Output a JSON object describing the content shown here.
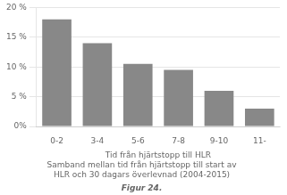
{
  "chart_data": {
    "type": "bar",
    "title": "Figur 24.",
    "subtitle": "Samband mellan tid från hjärtstopp till start av\nHLR och 30 dagars överlevnad (2004-2015)",
    "xlabel": "Tid från hjärtstopp till HLR",
    "categories": [
      "0-2",
      "3-4",
      "5-6",
      "7-8",
      "9-10",
      "11-"
    ],
    "values": [
      18,
      14,
      10.5,
      9.5,
      6,
      3
    ],
    "color": "#888888",
    "ylim": [
      0,
      20
    ],
    "yticks": [
      {
        "value": 0,
        "label": "0%"
      },
      {
        "value": 5,
        "label": "5 %"
      },
      {
        "value": 10,
        "label": "10 %"
      },
      {
        "value": 15,
        "label": "15 %"
      },
      {
        "value": 20,
        "label": "20 %"
      }
    ],
    "grid": true
  }
}
